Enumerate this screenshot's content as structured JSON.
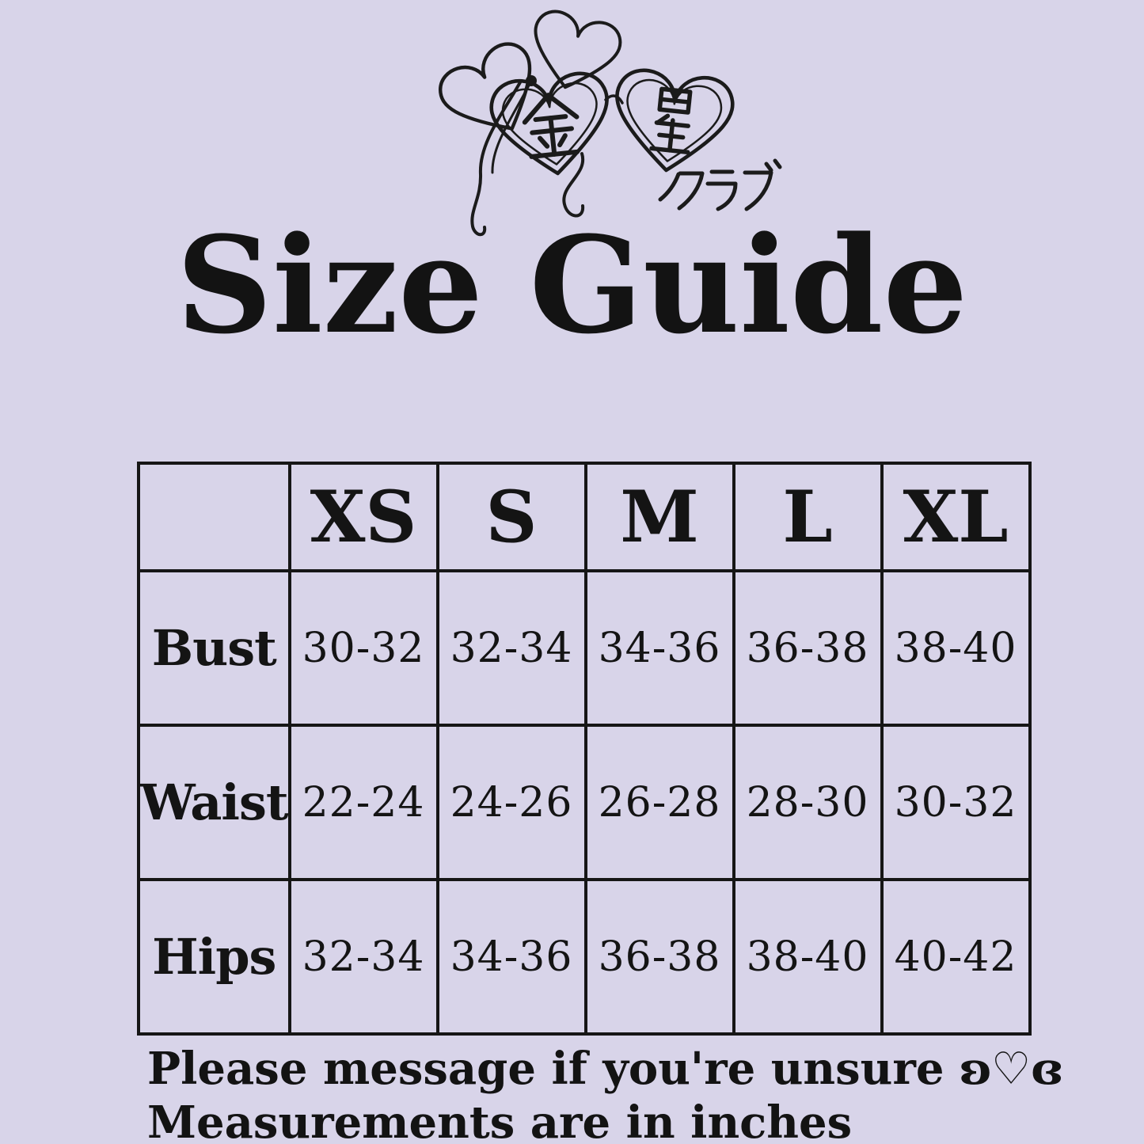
{
  "page": {
    "background_color": "#d8d4e9",
    "ink_color": "#161616"
  },
  "logo": {
    "description": "hand-drawn heart lockets with ribbon",
    "heart_left_kanji": "金",
    "heart_right_kanji": "星",
    "subtext_katakana": "クラブ"
  },
  "title": "Size Guide",
  "size_table": {
    "column_headers": [
      "XS",
      "S",
      "M",
      "L",
      "XL"
    ],
    "rows": [
      {
        "label": "Bust",
        "values": [
          "30-32",
          "32-34",
          "34-36",
          "36-38",
          "38-40"
        ]
      },
      {
        "label": "Waist",
        "values": [
          "22-24",
          "24-26",
          "26-28",
          "28-30",
          "30-32"
        ]
      },
      {
        "label": "Hips",
        "values": [
          "32-34",
          "34-36",
          "36-38",
          "38-40",
          "40-42"
        ]
      }
    ]
  },
  "footer": {
    "line1": "Please message if you're unsure ʚ♡ɞ",
    "line2": "Measurements are in inches"
  }
}
